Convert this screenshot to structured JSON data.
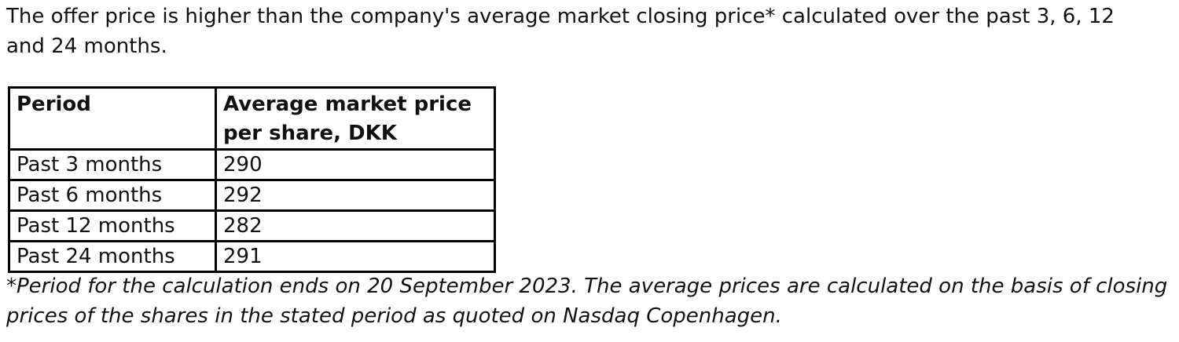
{
  "intro": {
    "text": "The offer price is higher than the company's average market closing price* calculated over the past 3, 6, 12 and 24 months."
  },
  "table": {
    "headers": {
      "period": "Period",
      "price": "Average market price per share, DKK"
    },
    "rows": [
      {
        "period": "Past 3 months",
        "price": "290"
      },
      {
        "period": "Past 6 months",
        "price": "292"
      },
      {
        "period": "Past 12 months",
        "price": "282"
      },
      {
        "period": "Past 24 months",
        "price": "291"
      }
    ]
  },
  "footnote": {
    "text": "*Period for the calculation ends on 20 September 2023. The average prices are calculated on the basis of closing prices of the shares in the stated period as quoted on Nasdaq Copenhagen."
  }
}
